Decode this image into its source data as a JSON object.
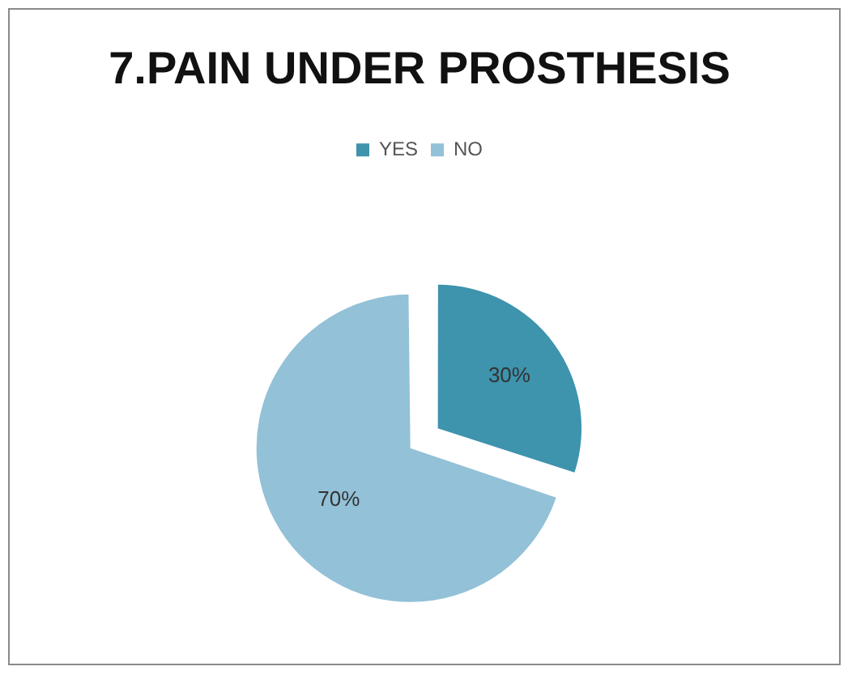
{
  "chart_data": {
    "type": "pie",
    "title": "7.PAIN UNDER PROSTHESIS",
    "categories": [
      "YES",
      "NO"
    ],
    "values": [
      30,
      70
    ],
    "colors": [
      "#3e93ad",
      "#93c1d7"
    ],
    "value_labels": [
      "30%",
      "70%"
    ],
    "legend": "top"
  }
}
